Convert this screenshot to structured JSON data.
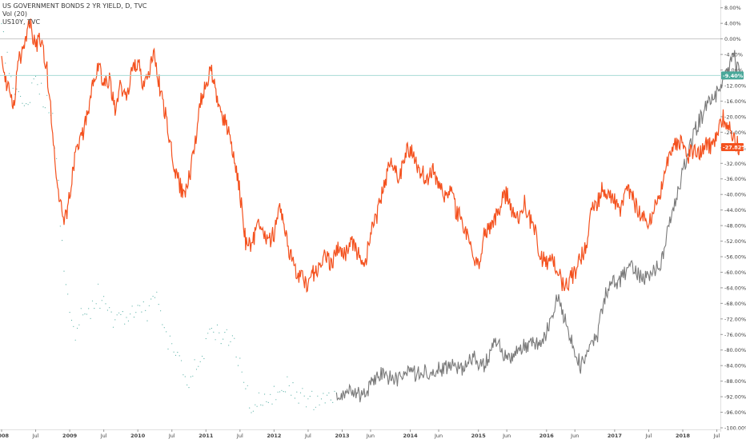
{
  "legend": {
    "main_symbol": "US GOVERNMENT BONDS 2 YR YIELD, D, TVC",
    "volume": "Vol (20)",
    "compare_symbol": "US10Y, TVC"
  },
  "colors": {
    "us02y": "#f4511e",
    "us10y": "#7a7a7a",
    "us10y_early": "#5fb3a9",
    "zero_line": "#c8c8c8",
    "us10y_tag": "#4aa89a",
    "us02y_tag": "#f4511e",
    "axis_text": "#444444"
  },
  "chart_data": {
    "type": "line",
    "y_unit": "%",
    "ylim": [
      -100,
      10
    ],
    "y_ticks": [
      8,
      4,
      0,
      -4,
      -8,
      -12,
      -16,
      -20,
      -24,
      -28,
      -32,
      -36,
      -40,
      -44,
      -48,
      -52,
      -56,
      -60,
      -64,
      -68,
      -72,
      -76,
      -80,
      -84,
      -88,
      -92,
      -96,
      -100
    ],
    "y_tick_labels": [
      "8.00%",
      "4.00%",
      "0.00%",
      "-4.00%",
      "-8.00%",
      "-12.00%",
      "-16.00%",
      "-20.00%",
      "-24.00%",
      "-28.00%",
      "-32.00%",
      "-36.00%",
      "-40.00%",
      "-44.00%",
      "-48.00%",
      "-52.00%",
      "-56.00%",
      "-60.00%",
      "-64.00%",
      "-68.00%",
      "-72.00%",
      "-76.00%",
      "-80.00%",
      "-84.00%",
      "-88.00%",
      "-92.00%",
      "-96.00%",
      "-100.00%"
    ],
    "x_range": [
      "2008-01",
      "2018-12"
    ],
    "x_ticks": [
      {
        "t": "2008-01",
        "label": "2008"
      },
      {
        "t": "2008-07",
        "label": "Jul"
      },
      {
        "t": "2009-01",
        "label": "2009"
      },
      {
        "t": "2009-07",
        "label": "Jul"
      },
      {
        "t": "2010-01",
        "label": "2010"
      },
      {
        "t": "2010-07",
        "label": "Jul"
      },
      {
        "t": "2011-01",
        "label": "2011"
      },
      {
        "t": "2011-07",
        "label": "Jul"
      },
      {
        "t": "2012-01",
        "label": "2012"
      },
      {
        "t": "2012-07",
        "label": "Jul"
      },
      {
        "t": "2013-01",
        "label": "2013"
      },
      {
        "t": "2013-06",
        "label": "Jun"
      },
      {
        "t": "2014-01",
        "label": "2014"
      },
      {
        "t": "2014-06",
        "label": "Jun"
      },
      {
        "t": "2015-01",
        "label": "2015"
      },
      {
        "t": "2015-06",
        "label": "Jun"
      },
      {
        "t": "2016-01",
        "label": "2016"
      },
      {
        "t": "2016-06",
        "label": "Jun"
      },
      {
        "t": "2017-01",
        "label": "2017"
      },
      {
        "t": "2017-07",
        "label": "Jul"
      },
      {
        "t": "2018-01",
        "label": "2018"
      },
      {
        "t": "2018-07",
        "label": "Jul"
      }
    ],
    "series": [
      {
        "name": "US10Y, TVC",
        "last_label": "-9.40%",
        "points": [
          [
            "2008-01",
            2
          ],
          [
            "2008-03",
            -14
          ],
          [
            "2008-05",
            -18
          ],
          [
            "2008-07",
            -12
          ],
          [
            "2008-09",
            -16
          ],
          [
            "2008-10",
            -22
          ],
          [
            "2008-11",
            -38
          ],
          [
            "2008-12",
            -60
          ],
          [
            "2009-01",
            -70
          ],
          [
            "2009-02",
            -75
          ],
          [
            "2009-03",
            -70
          ],
          [
            "2009-04",
            -72
          ],
          [
            "2009-06",
            -66
          ],
          [
            "2009-08",
            -72
          ],
          [
            "2009-10",
            -72
          ],
          [
            "2009-11",
            -70
          ],
          [
            "2010-01",
            -68
          ],
          [
            "2010-03",
            -70
          ],
          [
            "2010-04",
            -65
          ],
          [
            "2010-06",
            -76
          ],
          [
            "2010-08",
            -82
          ],
          [
            "2010-10",
            -89
          ],
          [
            "2010-12",
            -82
          ],
          [
            "2011-02",
            -76
          ],
          [
            "2011-04",
            -76
          ],
          [
            "2011-06",
            -80
          ],
          [
            "2011-07",
            -84
          ],
          [
            "2011-08",
            -90
          ],
          [
            "2011-09",
            -94
          ],
          [
            "2011-10",
            -93
          ],
          [
            "2011-12",
            -92
          ],
          [
            "2012-02",
            -91
          ],
          [
            "2012-04",
            -89
          ],
          [
            "2012-06",
            -92
          ],
          [
            "2012-08",
            -93
          ],
          [
            "2012-10",
            -92
          ],
          [
            "2012-12",
            -91
          ],
          [
            "2013-02",
            -91
          ],
          [
            "2013-05",
            -92
          ],
          [
            "2013-06",
            -89
          ],
          [
            "2013-08",
            -86
          ],
          [
            "2013-10",
            -88
          ],
          [
            "2013-12",
            -86
          ],
          [
            "2014-03",
            -86
          ],
          [
            "2014-06",
            -85
          ],
          [
            "2014-08",
            -84
          ],
          [
            "2014-10",
            -85
          ],
          [
            "2014-12",
            -82
          ],
          [
            "2015-02",
            -84
          ],
          [
            "2015-04",
            -78
          ],
          [
            "2015-06",
            -82
          ],
          [
            "2015-08",
            -80
          ],
          [
            "2015-10",
            -78
          ],
          [
            "2015-12",
            -79
          ],
          [
            "2016-02",
            -72
          ],
          [
            "2016-03",
            -66
          ],
          [
            "2016-05",
            -76
          ],
          [
            "2016-06",
            -80
          ],
          [
            "2016-07",
            -84
          ],
          [
            "2016-09",
            -78
          ],
          [
            "2016-10",
            -76
          ],
          [
            "2016-11",
            -68
          ],
          [
            "2016-12",
            -63
          ],
          [
            "2017-02",
            -62
          ],
          [
            "2017-04",
            -58
          ],
          [
            "2017-06",
            -62
          ],
          [
            "2017-08",
            -60
          ],
          [
            "2017-09",
            -58
          ],
          [
            "2017-11",
            -46
          ],
          [
            "2018-01",
            -34
          ],
          [
            "2018-03",
            -24
          ],
          [
            "2018-05",
            -18
          ],
          [
            "2018-07",
            -14
          ],
          [
            "2018-09",
            -8
          ],
          [
            "2018-10",
            -4
          ],
          [
            "2018-11",
            -9.4
          ]
        ]
      },
      {
        "name": "US GOVERNMENT BONDS 2 YR YIELD, D, TVC",
        "last_label": "-27.82%",
        "points": [
          [
            "2008-01",
            -4
          ],
          [
            "2008-02",
            -12
          ],
          [
            "2008-03",
            -18
          ],
          [
            "2008-04",
            -6
          ],
          [
            "2008-05",
            -2
          ],
          [
            "2008-06",
            4
          ],
          [
            "2008-07",
            -2
          ],
          [
            "2008-08",
            0
          ],
          [
            "2008-09",
            -8
          ],
          [
            "2008-10",
            -24
          ],
          [
            "2008-11",
            -40
          ],
          [
            "2008-12",
            -48
          ],
          [
            "2009-01",
            -40
          ],
          [
            "2009-02",
            -30
          ],
          [
            "2009-03",
            -26
          ],
          [
            "2009-04",
            -20
          ],
          [
            "2009-05",
            -12
          ],
          [
            "2009-06",
            -6
          ],
          [
            "2009-07",
            -12
          ],
          [
            "2009-08",
            -10
          ],
          [
            "2009-09",
            -18
          ],
          [
            "2009-10",
            -12
          ],
          [
            "2009-11",
            -16
          ],
          [
            "2009-12",
            -8
          ],
          [
            "2010-01",
            -6
          ],
          [
            "2010-02",
            -12
          ],
          [
            "2010-03",
            -8
          ],
          [
            "2010-04",
            -4
          ],
          [
            "2010-05",
            -14
          ],
          [
            "2010-06",
            -20
          ],
          [
            "2010-07",
            -30
          ],
          [
            "2010-08",
            -36
          ],
          [
            "2010-09",
            -40
          ],
          [
            "2010-10",
            -36
          ],
          [
            "2010-11",
            -28
          ],
          [
            "2010-12",
            -16
          ],
          [
            "2011-01",
            -12
          ],
          [
            "2011-02",
            -8
          ],
          [
            "2011-03",
            -16
          ],
          [
            "2011-04",
            -20
          ],
          [
            "2011-05",
            -24
          ],
          [
            "2011-06",
            -30
          ],
          [
            "2011-07",
            -40
          ],
          [
            "2011-08",
            -52
          ],
          [
            "2011-09",
            -54
          ],
          [
            "2011-10",
            -48
          ],
          [
            "2011-11",
            -50
          ],
          [
            "2011-12",
            -52
          ],
          [
            "2012-01",
            -50
          ],
          [
            "2012-02",
            -44
          ],
          [
            "2012-03",
            -50
          ],
          [
            "2012-04",
            -56
          ],
          [
            "2012-05",
            -60
          ],
          [
            "2012-06",
            -62
          ],
          [
            "2012-07",
            -64
          ],
          [
            "2012-08",
            -60
          ],
          [
            "2012-09",
            -58
          ],
          [
            "2012-10",
            -56
          ],
          [
            "2012-11",
            -58
          ],
          [
            "2012-12",
            -54
          ],
          [
            "2013-01",
            -56
          ],
          [
            "2013-02",
            -54
          ],
          [
            "2013-03",
            -52
          ],
          [
            "2013-04",
            -56
          ],
          [
            "2013-05",
            -58
          ],
          [
            "2013-06",
            -50
          ],
          [
            "2013-07",
            -46
          ],
          [
            "2013-08",
            -40
          ],
          [
            "2013-09",
            -34
          ],
          [
            "2013-10",
            -32
          ],
          [
            "2013-11",
            -36
          ],
          [
            "2013-12",
            -30
          ],
          [
            "2014-01",
            -28
          ],
          [
            "2014-02",
            -32
          ],
          [
            "2014-03",
            -34
          ],
          [
            "2014-04",
            -36
          ],
          [
            "2014-05",
            -34
          ],
          [
            "2014-06",
            -38
          ],
          [
            "2014-07",
            -40
          ],
          [
            "2014-08",
            -38
          ],
          [
            "2014-09",
            -44
          ],
          [
            "2014-10",
            -46
          ],
          [
            "2014-11",
            -50
          ],
          [
            "2014-12",
            -56
          ],
          [
            "2015-01",
            -58
          ],
          [
            "2015-02",
            -50
          ],
          [
            "2015-03",
            -48
          ],
          [
            "2015-04",
            -46
          ],
          [
            "2015-05",
            -42
          ],
          [
            "2015-06",
            -40
          ],
          [
            "2015-07",
            -44
          ],
          [
            "2015-08",
            -46
          ],
          [
            "2015-09",
            -42
          ],
          [
            "2015-10",
            -46
          ],
          [
            "2015-11",
            -50
          ],
          [
            "2015-12",
            -56
          ],
          [
            "2016-01",
            -58
          ],
          [
            "2016-02",
            -56
          ],
          [
            "2016-03",
            -60
          ],
          [
            "2016-04",
            -64
          ],
          [
            "2016-05",
            -62
          ],
          [
            "2016-06",
            -60
          ],
          [
            "2016-07",
            -56
          ],
          [
            "2016-08",
            -54
          ],
          [
            "2016-09",
            -44
          ],
          [
            "2016-10",
            -42
          ],
          [
            "2016-11",
            -38
          ],
          [
            "2016-12",
            -40
          ],
          [
            "2017-01",
            -42
          ],
          [
            "2017-02",
            -44
          ],
          [
            "2017-03",
            -38
          ],
          [
            "2017-04",
            -40
          ],
          [
            "2017-05",
            -44
          ],
          [
            "2017-06",
            -46
          ],
          [
            "2017-07",
            -48
          ],
          [
            "2017-08",
            -44
          ],
          [
            "2017-09",
            -40
          ],
          [
            "2017-10",
            -34
          ],
          [
            "2017-11",
            -28
          ],
          [
            "2018-01",
            -26
          ],
          [
            "2018-02",
            -30
          ],
          [
            "2018-03",
            -28
          ],
          [
            "2018-04",
            -30
          ],
          [
            "2018-05",
            -26
          ],
          [
            "2018-06",
            -28
          ],
          [
            "2018-07",
            -24
          ],
          [
            "2018-08",
            -20
          ],
          [
            "2018-09",
            -22
          ],
          [
            "2018-10",
            -26
          ],
          [
            "2018-11",
            -27.82
          ]
        ]
      }
    ]
  }
}
